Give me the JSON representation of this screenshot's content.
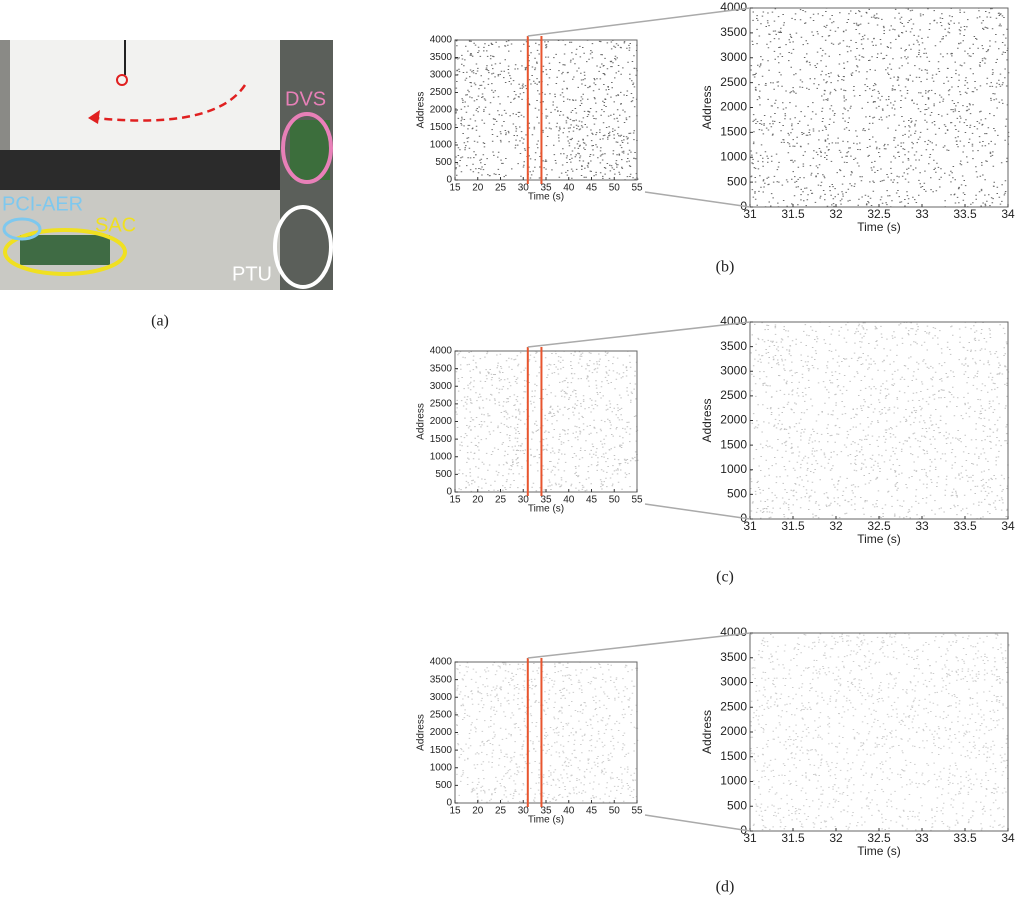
{
  "figure": {
    "photo": {
      "labels": [
        "DVS",
        "PCI-AER",
        "SAC",
        "PTU"
      ],
      "caption": "(a)"
    },
    "panels": [
      {
        "caption": "(b)",
        "plots": [
          {
            "xlabel": "Time (s)",
            "ylabel": "Address",
            "xlim": [
              15,
              55
            ],
            "ylim": [
              0,
              4000
            ],
            "xticks": [
              15,
              20,
              25,
              30,
              35,
              40,
              45,
              50,
              55
            ],
            "yticks": [
              0,
              500,
              1000,
              1500,
              2000,
              2500,
              3000,
              3500,
              4000
            ]
          },
          {
            "xlabel": "Time (s)",
            "ylabel": "Address",
            "xlim": [
              31,
              34
            ],
            "ylim": [
              0,
              4000
            ],
            "xticks": [
              31,
              31.5,
              32,
              32.5,
              33,
              33.5,
              34
            ],
            "yticks": [
              0,
              500,
              1000,
              1500,
              2000,
              2500,
              3000,
              3500,
              4000
            ]
          }
        ]
      },
      {
        "caption": "(c)",
        "plots": [
          {
            "xlabel": "Time (s)",
            "ylabel": "Address",
            "xlim": [
              15,
              55
            ],
            "ylim": [
              0,
              4000
            ],
            "xticks": [
              15,
              20,
              25,
              30,
              35,
              40,
              45,
              50,
              55
            ],
            "yticks": [
              0,
              500,
              1000,
              1500,
              2000,
              2500,
              3000,
              3500,
              4000
            ]
          },
          {
            "xlabel": "Time (s)",
            "ylabel": "Address",
            "xlim": [
              31,
              34
            ],
            "ylim": [
              0,
              4000
            ],
            "xticks": [
              31,
              31.5,
              32,
              32.5,
              33,
              33.5,
              34
            ],
            "yticks": [
              0,
              500,
              1000,
              1500,
              2000,
              2500,
              3000,
              3500,
              4000
            ]
          }
        ]
      },
      {
        "caption": "(d)",
        "plots": [
          {
            "xlabel": "Time (s)",
            "ylabel": "Address",
            "xlim": [
              15,
              55
            ],
            "ylim": [
              0,
              4000
            ],
            "xticks": [
              15,
              20,
              25,
              30,
              35,
              40,
              45,
              50,
              55
            ],
            "yticks": [
              0,
              500,
              1000,
              1500,
              2000,
              2500,
              3000,
              3500,
              4000
            ]
          },
          {
            "xlabel": "Time (s)",
            "ylabel": "Address",
            "xlim": [
              31,
              34
            ],
            "ylim": [
              0,
              4000
            ],
            "xticks": [
              31,
              31.5,
              32,
              32.5,
              33,
              33.5,
              34
            ],
            "yticks": [
              0,
              500,
              1000,
              1500,
              2000,
              2500,
              3000,
              3500,
              4000
            ]
          }
        ]
      }
    ]
  }
}
